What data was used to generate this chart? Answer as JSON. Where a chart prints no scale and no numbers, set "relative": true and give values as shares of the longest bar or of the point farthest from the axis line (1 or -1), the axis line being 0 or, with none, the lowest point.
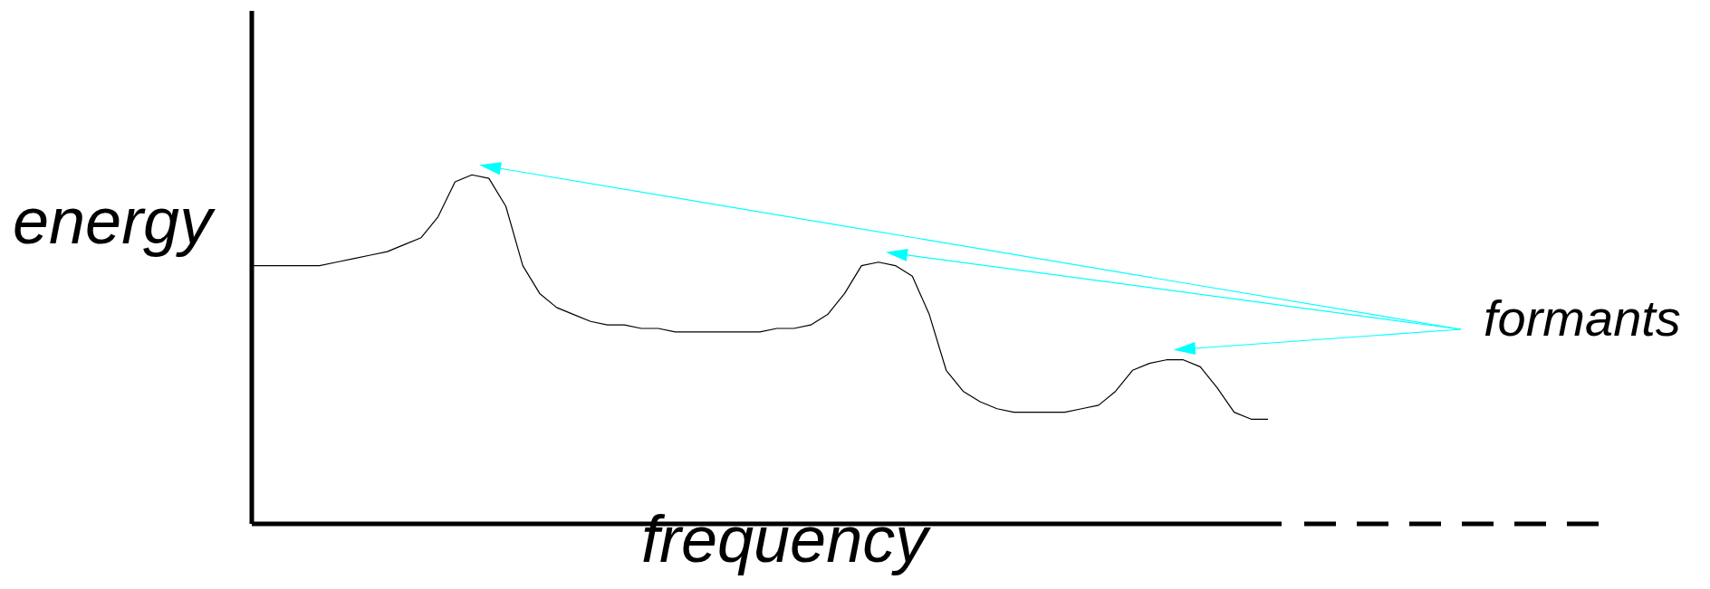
{
  "chart_data": {
    "type": "line",
    "relative": true,
    "xlabel": "frequency",
    "ylabel": "energy",
    "annotations": [
      "formants"
    ],
    "marker": "none",
    "line_style": "solid",
    "categories": [
      null,
      null,
      null,
      null,
      null,
      null,
      null,
      null,
      null,
      null,
      null,
      null,
      null,
      null,
      null,
      null,
      null,
      null,
      null,
      null,
      null,
      null,
      null,
      null,
      null,
      null,
      null,
      null,
      null,
      null,
      null,
      null,
      null,
      null,
      null,
      null,
      null,
      null,
      null,
      null,
      null,
      null,
      null,
      null,
      null,
      null,
      null,
      null,
      null,
      null,
      null,
      null,
      null,
      null,
      null,
      null,
      null,
      null,
      null,
      null,
      null
    ],
    "series": [
      {
        "color": "#000000",
        "values": [
          0.74,
          0.74,
          0.74,
          0.74,
          0.74,
          0.75,
          0.76,
          0.77,
          0.78,
          0.8,
          0.82,
          0.88,
          0.98,
          1,
          0.99,
          0.91,
          0.74,
          0.66,
          0.62,
          0.6,
          0.58,
          0.57,
          0.57,
          0.56,
          0.56,
          0.55,
          0.55,
          0.55,
          0.55,
          0.55,
          0.55,
          0.56,
          0.56,
          0.57,
          0.6,
          0.66,
          0.74,
          0.75,
          0.74,
          0.71,
          0.6,
          0.44,
          0.38,
          0.35,
          0.33,
          0.32,
          0.32,
          0.32,
          0.32,
          0.33,
          0.34,
          0.38,
          0.44,
          0.46,
          0.47,
          0.47,
          0.45,
          0.39,
          0.32,
          0.3,
          0.3
        ]
      }
    ]
  }
}
